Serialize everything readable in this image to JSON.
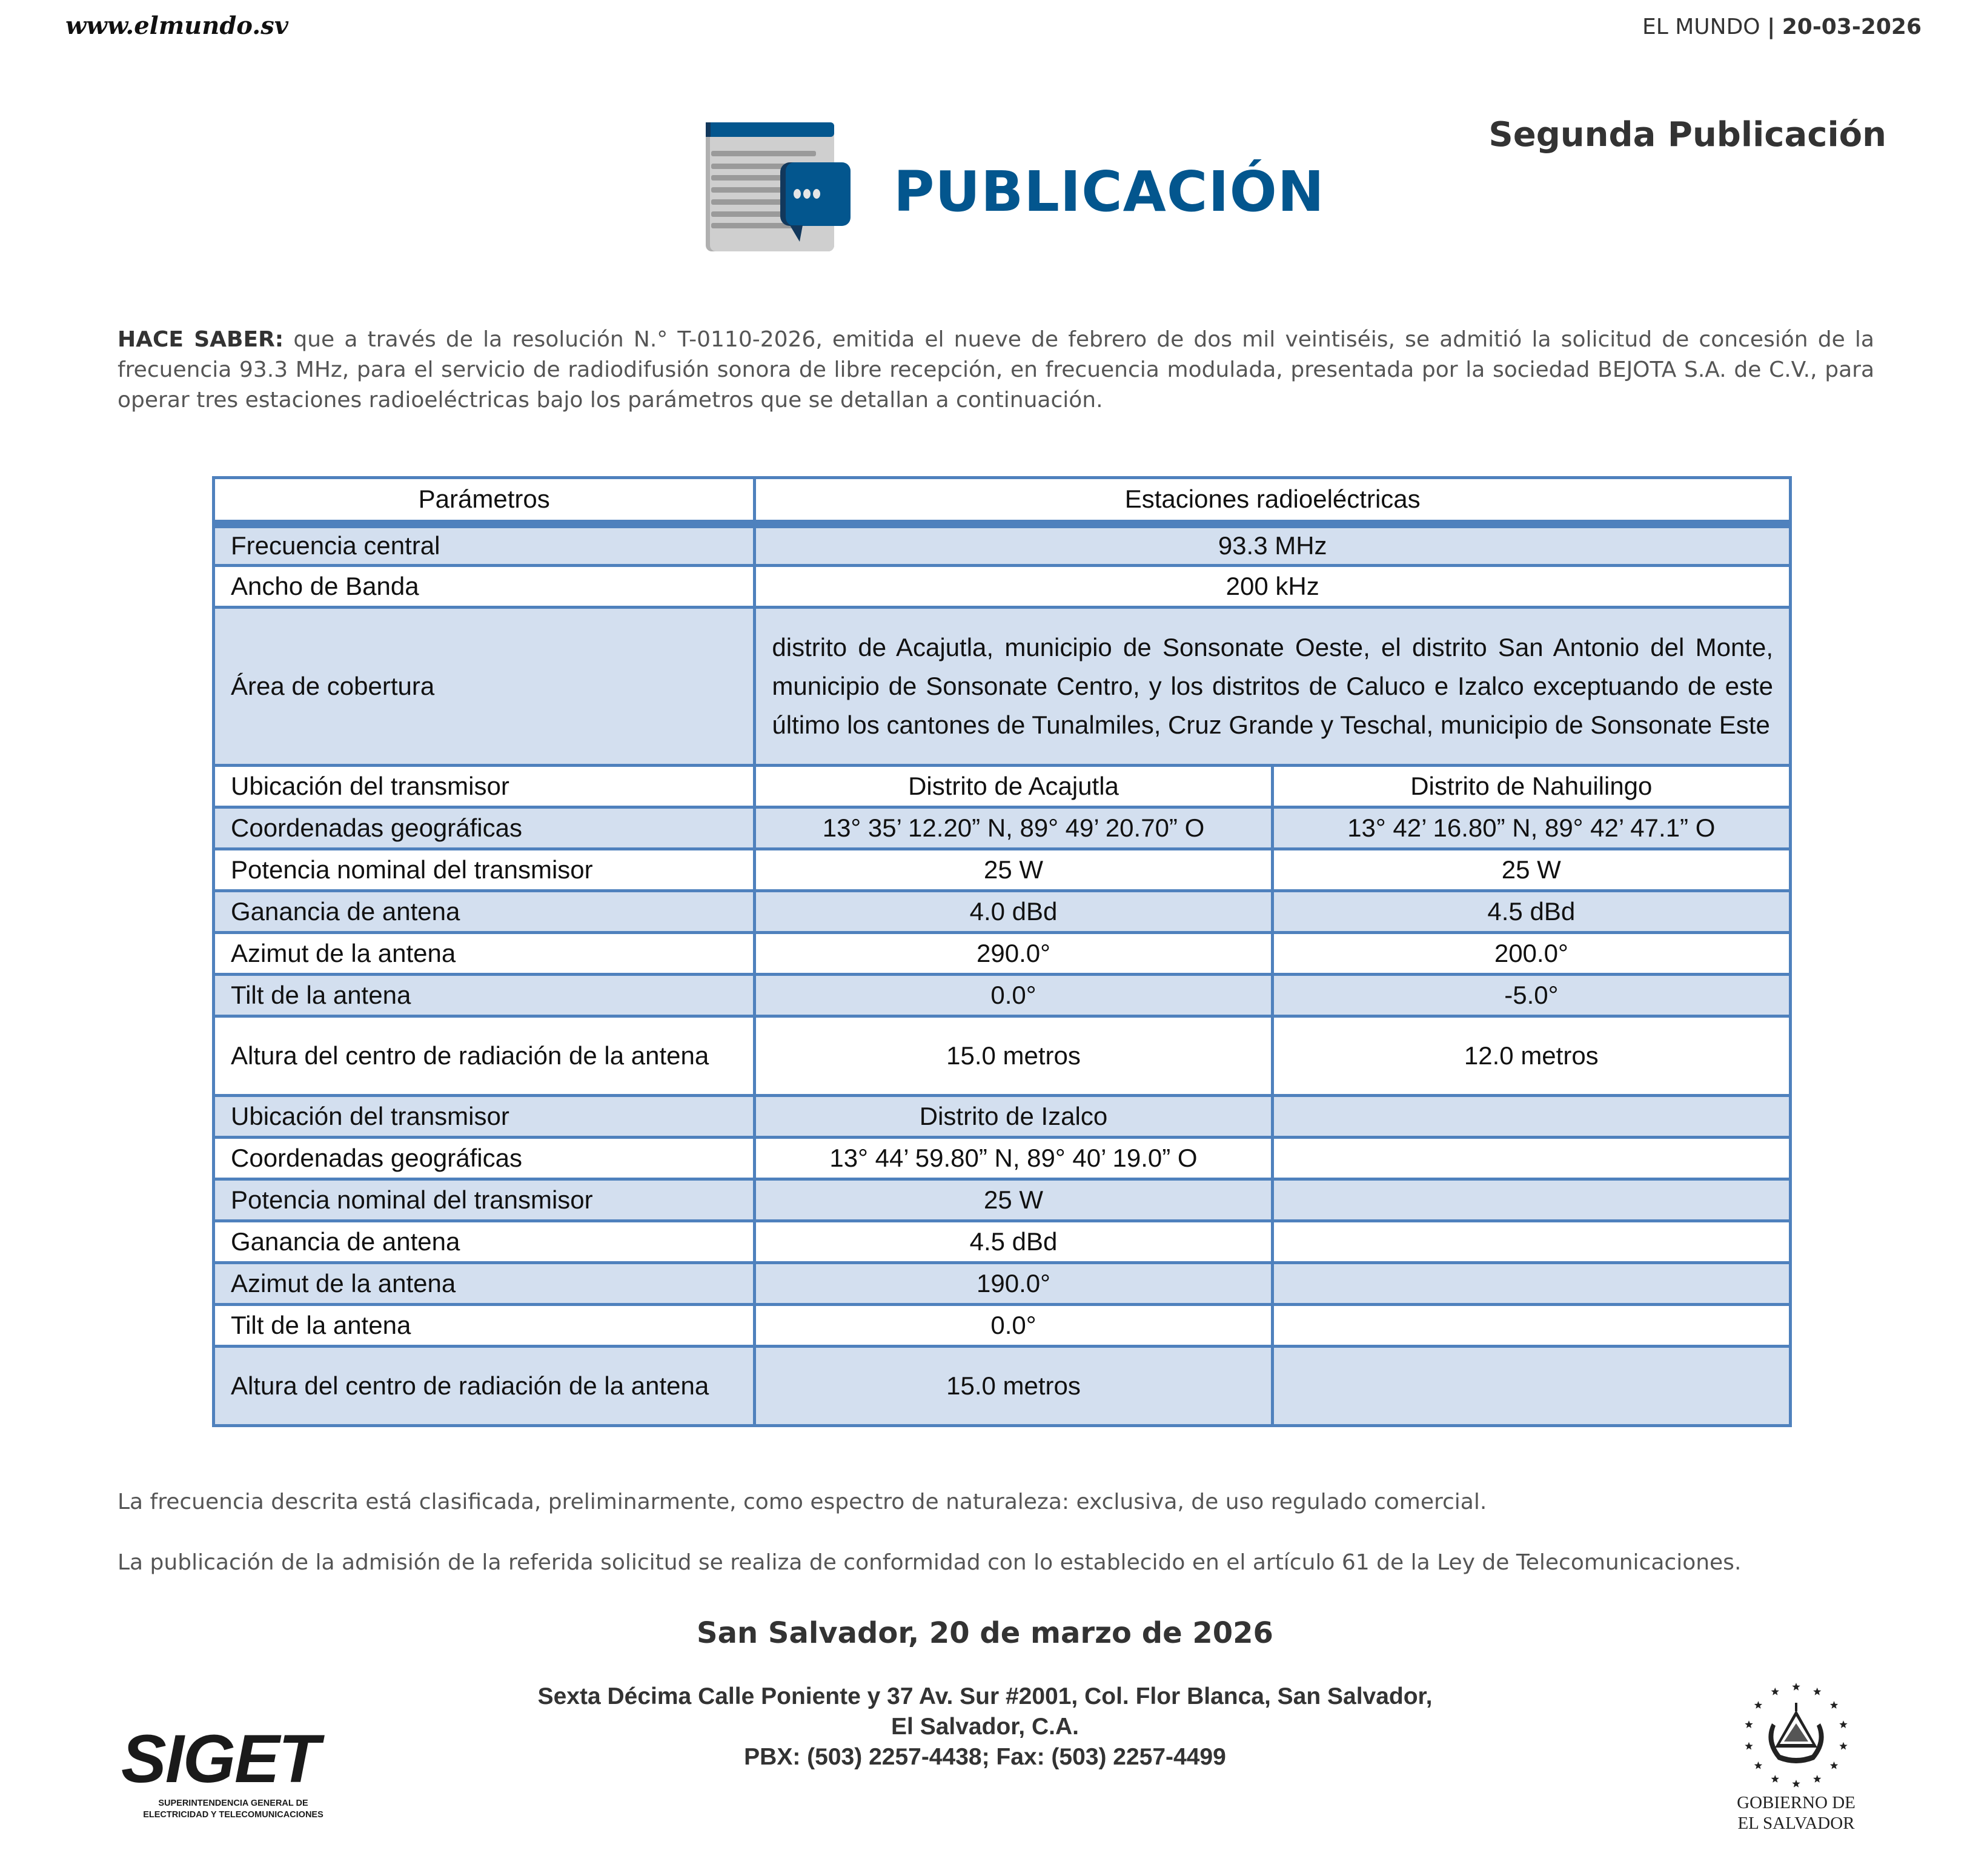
{
  "header": {
    "site": "www.elmundo.sv",
    "paper": "EL MUNDO",
    "date": "20-03-2026"
  },
  "edition_label": "Segunda Publicación",
  "title": "PUBLICACIÓN",
  "intro": {
    "lead": "HACE SABER:",
    "text": " que a través de la resolución N.° T-0110-2026, emitida el nueve de febrero de dos mil veintiséis, se admitió la solicitud de concesión de la frecuencia 93.3 MHz, para el servicio de radiodifusión sonora de libre recepción, en frecuencia modulada, presentada por la sociedad BEJOTA S.A. de C.V., para operar tres estaciones radioeléctricas bajo los parámetros que se detallan a continuación."
  },
  "table": {
    "headers": [
      "Parámetros",
      "Estaciones radioeléctricas"
    ],
    "rows": [
      {
        "label": "Frecuencia central",
        "values": [
          "93.3 MHz"
        ]
      },
      {
        "label": "Ancho de Banda",
        "values": [
          "200 kHz"
        ]
      },
      {
        "label": "Área de cobertura",
        "values": [
          "distrito de Acajutla, municipio de Sonsonate Oeste, el distrito San Antonio del Monte, municipio de Sonsonate Centro, y los distritos de Caluco e Izalco exceptuando de este último los cantones de Tunalmiles, Cruz Grande y Teschal, municipio de Sonsonate Este"
        ]
      },
      {
        "label": "Ubicación del transmisor",
        "values": [
          "Distrito de Acajutla",
          "Distrito de Nahuilingo"
        ]
      },
      {
        "label": "Coordenadas geográficas",
        "values": [
          "13° 35’ 12.20” N, 89° 49’ 20.70” O",
          "13° 42’ 16.80” N, 89° 42’ 47.1” O"
        ]
      },
      {
        "label": "Potencia nominal del transmisor",
        "values": [
          "25 W",
          "25 W"
        ]
      },
      {
        "label": "Ganancia de antena",
        "values": [
          "4.0 dBd",
          "4.5 dBd"
        ]
      },
      {
        "label": "Azimut de la antena",
        "values": [
          "290.0°",
          "200.0°"
        ]
      },
      {
        "label": "Tilt de la antena",
        "values": [
          "0.0°",
          "-5.0°"
        ]
      },
      {
        "label": "Altura del centro de radiación de la antena",
        "values": [
          "15.0 metros",
          "12.0 metros"
        ]
      },
      {
        "label": "Ubicación del transmisor",
        "values": [
          "Distrito de Izalco",
          ""
        ]
      },
      {
        "label": "Coordenadas geográficas",
        "values": [
          "13° 44’ 59.80” N, 89° 40’ 19.0” O",
          ""
        ]
      },
      {
        "label": "Potencia nominal del transmisor",
        "values": [
          "25 W",
          ""
        ]
      },
      {
        "label": "Ganancia de antena",
        "values": [
          "4.5 dBd",
          ""
        ]
      },
      {
        "label": "Azimut de la antena",
        "values": [
          "190.0°",
          ""
        ]
      },
      {
        "label": "Tilt de la antena",
        "values": [
          "0.0°",
          ""
        ]
      },
      {
        "label": "Altura del centro de radiación de la antena",
        "values": [
          "15.0 metros",
          ""
        ]
      }
    ]
  },
  "notes": [
    "La frecuencia descrita está clasificada, preliminarmente, como espectro de naturaleza: exclusiva, de uso regulado comercial.",
    "La publicación de la admisión de la referida solicitud se realiza de conformidad con lo establecido en el artículo 61 de la Ley de Telecomunicaciones."
  ],
  "place_date": "San Salvador, 20 de marzo de 2026",
  "address": [
    "Sexta Décima Calle Poniente y 37 Av. Sur #2001, Col. Flor Blanca, San Salvador,",
    "El Salvador, C.A.",
    "PBX: (503) 2257-4438; Fax: (503) 2257-4499"
  ],
  "logos": {
    "siget": {
      "name": "SIGET",
      "subtitle": [
        "SUPERINTENDENCIA GENERAL DE",
        "ELECTRICIDAD Y TELECOMUNICACIONES"
      ]
    },
    "gobierno": [
      "GOBIERNO DE",
      "EL SALVADOR"
    ]
  },
  "colors": {
    "brand_blue": "#03568e",
    "table_border": "#4f81bd",
    "row_shade": "#d3dfef"
  },
  "icons": {
    "publication": "document-chat-bubble-icon",
    "coat_of_arms": "el-salvador-coat-of-arms-icon"
  }
}
